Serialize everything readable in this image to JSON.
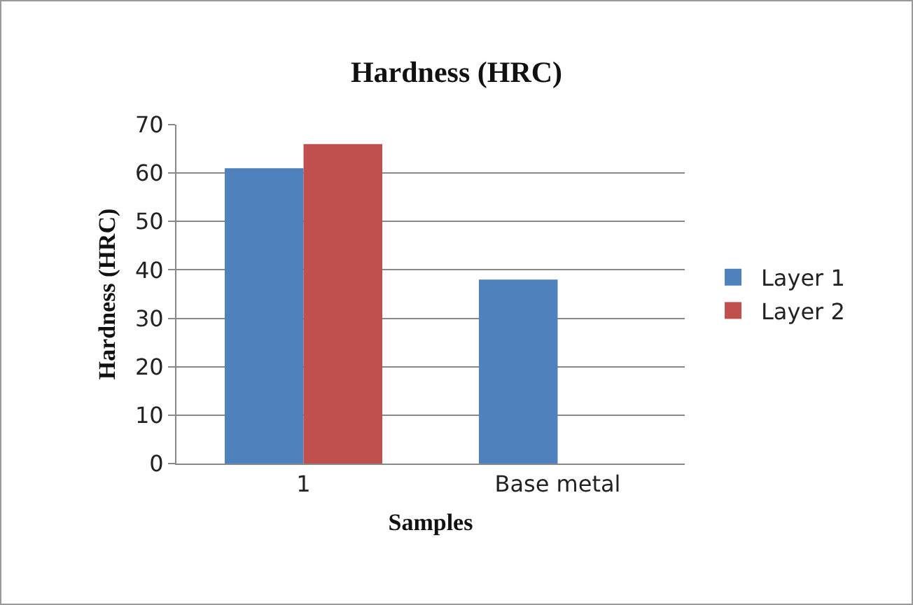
{
  "chart_data": {
    "type": "bar",
    "title": "Hardness (HRC)",
    "xlabel": "Samples",
    "ylabel": "Hardness (HRC)",
    "categories": [
      "1",
      "Base metal"
    ],
    "series": [
      {
        "name": "Layer 1",
        "color": "#4f81bd",
        "values": [
          61,
          38
        ]
      },
      {
        "name": "Layer 2",
        "color": "#c0504d",
        "values": [
          66,
          null
        ]
      }
    ],
    "ylim": [
      0,
      70
    ],
    "yticks": [
      0,
      10,
      20,
      30,
      40,
      50,
      60,
      70
    ],
    "grid": "y",
    "legend": "right"
  }
}
